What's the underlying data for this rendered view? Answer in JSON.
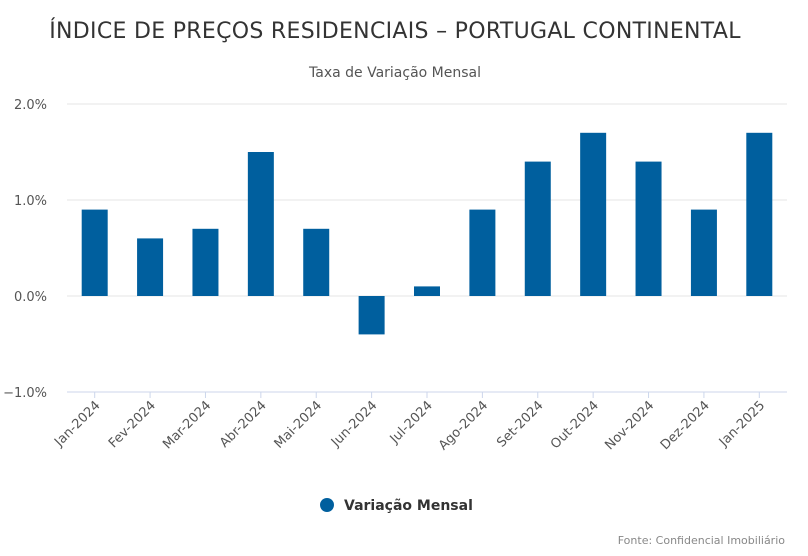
{
  "chart_data": {
    "type": "bar",
    "title": "ÍNDICE DE PREÇOS RESIDENCIAIS – PORTUGAL CONTINENTAL",
    "subtitle": "Taxa de Variação Mensal",
    "categories": [
      "Jan-2024",
      "Fev-2024",
      "Mar-2024",
      "Abr-2024",
      "Mai-2024",
      "Jun-2024",
      "Jul-2024",
      "Ago-2024",
      "Set-2024",
      "Out-2024",
      "Nov-2024",
      "Dez-2024",
      "Jan-2025"
    ],
    "series": [
      {
        "name": "Variação Mensal",
        "values": [
          0.9,
          0.6,
          0.7,
          1.5,
          0.7,
          -0.4,
          0.1,
          0.9,
          1.4,
          1.7,
          1.4,
          0.9,
          1.7
        ],
        "color": "#005f9e"
      }
    ],
    "yticks": [
      -1.0,
      0.0,
      1.0,
      2.0
    ],
    "ytick_labels": [
      "−1.0%",
      "0.0%",
      "1.0%",
      "2.0%"
    ],
    "ylim": [
      -1.0,
      2.0
    ],
    "xlabel": "",
    "ylabel": "",
    "grid": true,
    "legend_position": "bottom-center",
    "credit": "Fonte: Confidencial Imobiliário"
  }
}
